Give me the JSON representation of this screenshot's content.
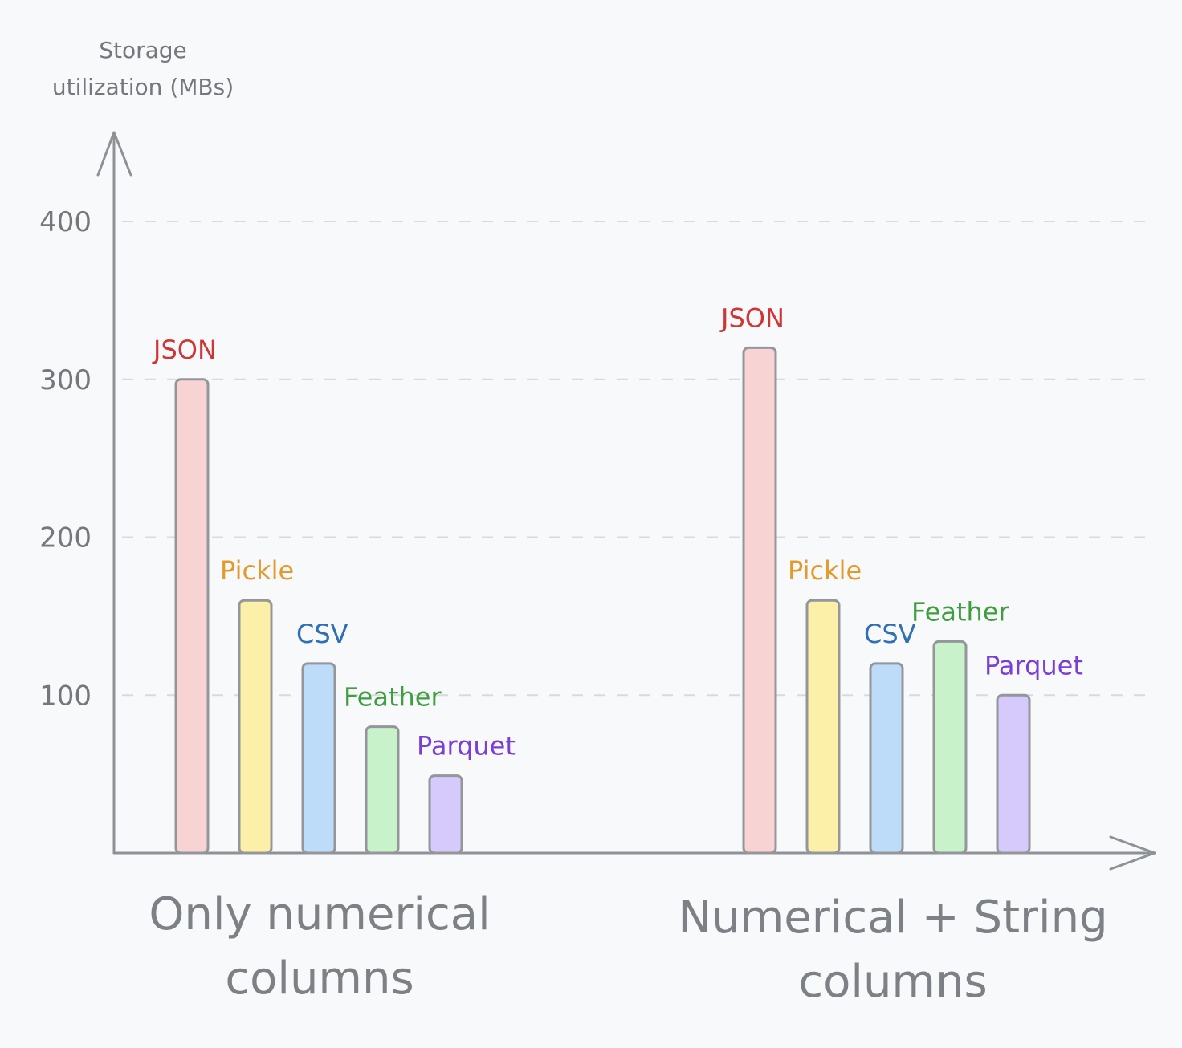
{
  "chart_data": {
    "type": "bar",
    "ylabel": "Storage utilization (MBs)",
    "ylabel_lines": [
      "Storage",
      "utilization (MBs)"
    ],
    "ylim": [
      0,
      400
    ],
    "yticks": [
      100,
      200,
      300,
      400
    ],
    "grid": true,
    "categories": [
      "Only numerical columns",
      "Numerical + String columns"
    ],
    "category_lines": [
      [
        "Only numerical",
        "columns"
      ],
      [
        "Numerical + String",
        "columns"
      ]
    ],
    "series": [
      {
        "name": "JSON",
        "color": "#f7d3d3",
        "label_color": "#d03535",
        "values": [
          300,
          320
        ]
      },
      {
        "name": "Pickle",
        "color": "#fcefa8",
        "label_color": "#e39a2a",
        "values": [
          160,
          160
        ]
      },
      {
        "name": "CSV",
        "color": "#bcdcfa",
        "label_color": "#2f6fb5",
        "values": [
          120,
          120
        ]
      },
      {
        "name": "Feather",
        "color": "#c8f2c9",
        "label_color": "#3f9e3f",
        "values": [
          80,
          134
        ]
      },
      {
        "name": "Parquet",
        "color": "#d6cafc",
        "label_color": "#7b3fd6",
        "values": [
          49,
          100
        ]
      }
    ]
  }
}
